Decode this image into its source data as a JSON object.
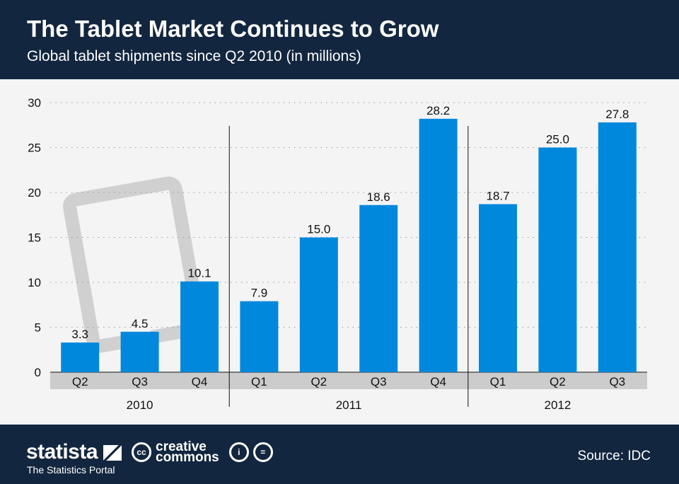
{
  "header": {
    "title": "The Tablet Market Continues to Grow",
    "subtitle": "Global tablet shipments since Q2 2010 (in millions)"
  },
  "footer": {
    "brand": "statista",
    "tagline": "The Statistics Portal",
    "cc_label": "cc",
    "cc_text_1": "creative",
    "cc_text_2": "commons",
    "source": "Source: IDC"
  },
  "colors": {
    "bar": "#0088dd",
    "header_bg": "#12263f",
    "axis_band": "#cccccc",
    "tablet_icon": "#d0d0d0"
  },
  "icons": [
    "tablet-icon",
    "statista-logo-icon",
    "creative-commons-icon",
    "attribution-icon",
    "no-derivatives-icon"
  ],
  "chart_data": {
    "type": "bar",
    "title": "The Tablet Market Continues to Grow",
    "subtitle": "Global tablet shipments since Q2 2010 (in millions)",
    "categories": [
      "Q2",
      "Q3",
      "Q4",
      "Q1",
      "Q2",
      "Q3",
      "Q4",
      "Q1",
      "Q2",
      "Q3"
    ],
    "groups": [
      {
        "label": "2010",
        "count": 3
      },
      {
        "label": "2011",
        "count": 4
      },
      {
        "label": "2012",
        "count": 3
      }
    ],
    "values": [
      3.3,
      4.5,
      10.1,
      7.9,
      15.0,
      18.6,
      28.2,
      18.7,
      25.0,
      27.8
    ],
    "value_labels": [
      "3.3",
      "4.5",
      "10.1",
      "7.9",
      "15.0",
      "18.6",
      "28.2",
      "18.7",
      "25.0",
      "27.8"
    ],
    "ylim": [
      0,
      30
    ],
    "yticks": [
      "0",
      "5",
      "10",
      "15",
      "20",
      "25",
      "30"
    ],
    "grid": true,
    "xlabel": "",
    "ylabel": ""
  }
}
